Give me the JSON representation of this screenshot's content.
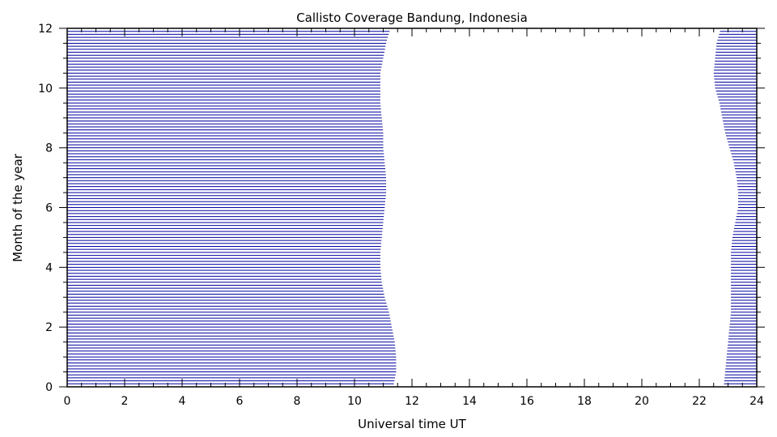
{
  "chart_data": {
    "type": "area",
    "title": "Callisto Coverage Bandung, Indonesia",
    "xlabel": "Universal time UT",
    "ylabel": "Month of the year",
    "xlim": [
      0,
      24
    ],
    "ylim": [
      0,
      12
    ],
    "x_ticks": [
      "0",
      "2",
      "4",
      "6",
      "8",
      "10",
      "12",
      "14",
      "16",
      "18",
      "20",
      "22",
      "24"
    ],
    "y_ticks": [
      "0",
      "2",
      "4",
      "6",
      "8",
      "10",
      "12"
    ],
    "x_minor_step": 0.5,
    "y_minor_step": 0.5,
    "grid": false,
    "legend": "none",
    "fill_color": "#0000a0",
    "fill_style": "horizontal-lines",
    "line_spacing_months": 0.1,
    "coverage_profile": {
      "month": [
        0,
        0.5,
        1,
        1.5,
        2,
        2.5,
        3,
        3.5,
        4,
        4.5,
        5,
        5.5,
        6,
        6.5,
        7,
        7.5,
        8,
        8.5,
        9,
        9.5,
        10,
        10.5,
        11,
        11.5,
        12
      ],
      "morning_end_ut": [
        11.35,
        11.45,
        11.45,
        11.4,
        11.3,
        11.2,
        11.05,
        10.95,
        10.9,
        10.9,
        10.95,
        11.0,
        11.05,
        11.1,
        11.1,
        11.05,
        11.0,
        11.0,
        10.95,
        10.9,
        10.9,
        10.9,
        11.0,
        11.1,
        11.25
      ],
      "evening_start_ut": [
        22.85,
        22.9,
        22.95,
        23.0,
        23.05,
        23.1,
        23.1,
        23.1,
        23.1,
        23.1,
        23.15,
        23.25,
        23.35,
        23.35,
        23.3,
        23.2,
        23.05,
        22.9,
        22.8,
        22.7,
        22.55,
        22.5,
        22.55,
        22.6,
        22.75
      ]
    }
  }
}
